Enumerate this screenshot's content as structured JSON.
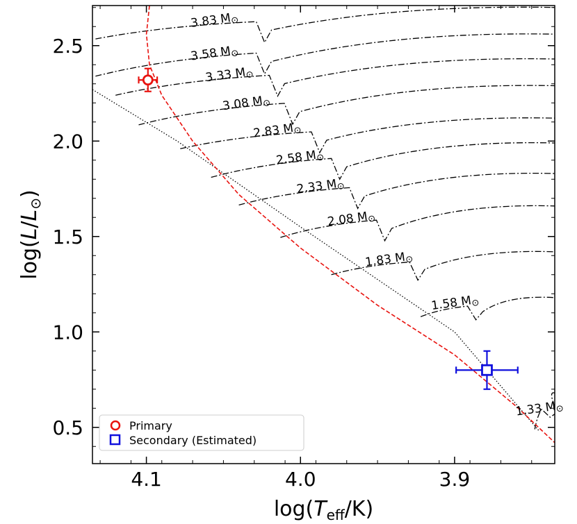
{
  "chart_data": {
    "type": "scatter",
    "title": "",
    "xlabel": "log(T_eff/K)",
    "ylabel": "log(L/L_⊙)",
    "xlabel_parts": {
      "pre": "log(",
      "italic": "T",
      "sub": "eff",
      "post": "/K)"
    },
    "ylabel_parts": {
      "pre": "log(",
      "italic1": "L",
      "slash": "/",
      "italic2": "L",
      "sub": "⊙",
      "post": ")"
    },
    "xlim": [
      4.135,
      3.835
    ],
    "ylim": [
      0.31,
      2.71
    ],
    "x_ticks": [
      {
        "value": 4.1,
        "label": "4.1"
      },
      {
        "value": 4.0,
        "label": "4.0"
      },
      {
        "value": 3.9,
        "label": "3.9"
      }
    ],
    "y_ticks": [
      {
        "value": 0.5,
        "label": "0.5"
      },
      {
        "value": 1.0,
        "label": "1.0"
      },
      {
        "value": 1.5,
        "label": "1.5"
      },
      {
        "value": 2.0,
        "label": "2.0"
      },
      {
        "value": 2.5,
        "label": "2.5"
      }
    ],
    "tracks": [
      {
        "mass": "3.83",
        "start": [
          4.133,
          2.535
        ],
        "end": [
          3.835,
          2.7
        ]
      },
      {
        "mass": "3.58",
        "start": [
          4.133,
          2.34
        ],
        "end": [
          3.835,
          2.56
        ]
      },
      {
        "mass": "3.33",
        "start": [
          4.12,
          2.24
        ],
        "end": [
          3.835,
          2.43
        ]
      },
      {
        "mass": "3.08",
        "start": [
          4.105,
          2.085
        ],
        "end": [
          3.835,
          2.29
        ]
      },
      {
        "mass": "2.83",
        "start": [
          4.078,
          1.96
        ],
        "end": [
          3.835,
          2.12
        ]
      },
      {
        "mass": "2.58",
        "start": [
          4.058,
          1.81
        ],
        "end": [
          3.835,
          1.99
        ]
      },
      {
        "mass": "2.33",
        "start": [
          4.04,
          1.665
        ],
        "end": [
          3.835,
          1.83
        ]
      },
      {
        "mass": "2.08",
        "start": [
          4.013,
          1.495
        ],
        "end": [
          3.835,
          1.66
        ]
      },
      {
        "mass": "1.83",
        "start": [
          3.98,
          1.3
        ],
        "end": [
          3.835,
          1.42
        ]
      },
      {
        "mass": "1.58",
        "start": [
          3.922,
          1.08
        ],
        "end": [
          3.835,
          1.18
        ]
      },
      {
        "mass": "1.33",
        "start": [
          3.848,
          0.49
        ],
        "end": [
          3.835,
          0.68
        ]
      }
    ],
    "mass_unit": "M",
    "sun_symbol": "⊙",
    "zams": [
      [
        4.135,
        2.27
      ],
      [
        4.08,
        2.0
      ],
      [
        4.0,
        1.55
      ],
      [
        3.9,
        1.0
      ],
      [
        3.845,
        0.48
      ]
    ],
    "isochrone": [
      [
        4.098,
        2.71
      ],
      [
        4.1,
        2.56
      ],
      [
        4.098,
        2.4
      ],
      [
        4.09,
        2.24
      ],
      [
        4.07,
        2.0
      ],
      [
        4.04,
        1.72
      ],
      [
        4.0,
        1.44
      ],
      [
        3.95,
        1.14
      ],
      [
        3.9,
        0.88
      ],
      [
        3.86,
        0.61
      ],
      [
        3.835,
        0.42
      ]
    ],
    "series": [
      {
        "name": "Primary",
        "marker": "circle",
        "color": "#e8130f",
        "x": 4.099,
        "y": 2.32,
        "xerr": 0.006,
        "yerr": 0.06
      },
      {
        "name": "Secondary (Estimated)",
        "marker": "square",
        "color": "#1010dd",
        "x": 3.879,
        "y": 0.8,
        "xerr": 0.02,
        "yerr": 0.1
      }
    ],
    "legend_placement": "lower-left",
    "grid": false
  }
}
